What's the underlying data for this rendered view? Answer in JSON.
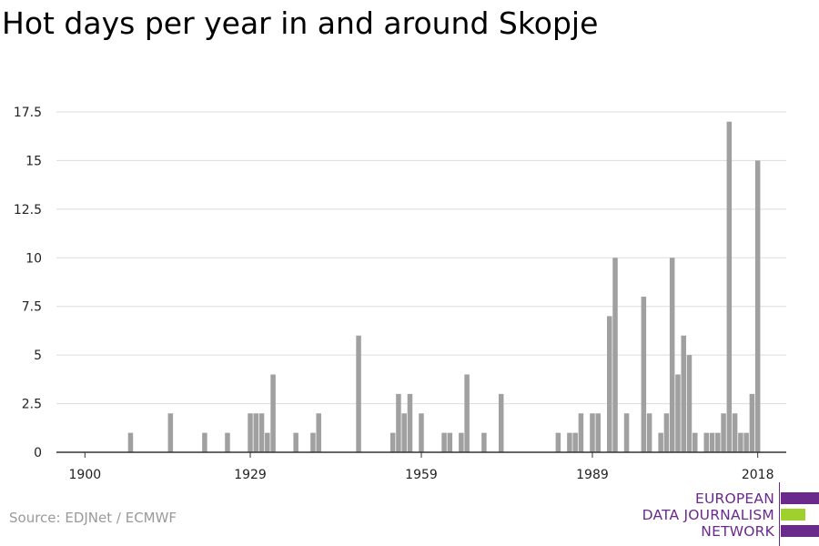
{
  "title": "Hot days per year in and around Skopje",
  "source": "Source: EDJNet / ECMWF",
  "logo": {
    "lines": [
      "EUROPEAN",
      "DATA JOURNALISM",
      "NETWORK"
    ],
    "colors": {
      "purple": "#6a2a8c",
      "green": "#9ed12b"
    }
  },
  "colors": {
    "bar": "#a0a0a0",
    "grid": "#dddddd",
    "axis": "#333333",
    "text": "#222222"
  },
  "chart_data": {
    "type": "bar",
    "title": "Hot days per year in and around Skopje",
    "xlabel": "",
    "ylabel": "",
    "xlim": [
      1895,
      2023
    ],
    "ylim": [
      0,
      17.5
    ],
    "grid": true,
    "x_ticks": [
      1900,
      1929,
      1959,
      1989,
      2018
    ],
    "y_ticks": [
      0,
      2.5,
      5,
      7.5,
      10,
      12.5,
      15,
      17.5
    ],
    "y_tick_labels": [
      "0",
      "2.5",
      "5",
      "7.5",
      "10",
      "12.5",
      "15",
      "17.5"
    ],
    "x": [
      1900,
      1901,
      1902,
      1903,
      1904,
      1905,
      1906,
      1907,
      1908,
      1909,
      1910,
      1911,
      1912,
      1913,
      1914,
      1915,
      1916,
      1917,
      1918,
      1919,
      1920,
      1921,
      1922,
      1923,
      1924,
      1925,
      1926,
      1927,
      1928,
      1929,
      1930,
      1931,
      1932,
      1933,
      1934,
      1935,
      1936,
      1937,
      1938,
      1939,
      1940,
      1941,
      1942,
      1943,
      1944,
      1945,
      1946,
      1947,
      1948,
      1949,
      1950,
      1951,
      1952,
      1953,
      1954,
      1955,
      1956,
      1957,
      1958,
      1959,
      1960,
      1961,
      1962,
      1963,
      1964,
      1965,
      1966,
      1967,
      1968,
      1969,
      1970,
      1971,
      1972,
      1973,
      1974,
      1975,
      1976,
      1977,
      1978,
      1979,
      1980,
      1981,
      1982,
      1983,
      1984,
      1985,
      1986,
      1987,
      1988,
      1989,
      1990,
      1991,
      1992,
      1993,
      1994,
      1995,
      1996,
      1997,
      1998,
      1999,
      2000,
      2001,
      2002,
      2003,
      2004,
      2005,
      2006,
      2007,
      2008,
      2009,
      2010,
      2011,
      2012,
      2013,
      2014,
      2015,
      2016,
      2017,
      2018
    ],
    "values": [
      0,
      0,
      0,
      0,
      0,
      0,
      0,
      0,
      1,
      0,
      0,
      0,
      0,
      0,
      0,
      2,
      0,
      0,
      0,
      0,
      0,
      1,
      0,
      0,
      0,
      1,
      0,
      0,
      0,
      2,
      2,
      2,
      1,
      4,
      0,
      0,
      0,
      1,
      0,
      0,
      1,
      2,
      0,
      0,
      0,
      0,
      0,
      0,
      6,
      0,
      0,
      0,
      0,
      0,
      1,
      3,
      2,
      3,
      0,
      2,
      0,
      0,
      0,
      1,
      1,
      0,
      1,
      4,
      0,
      0,
      1,
      0,
      0,
      3,
      0,
      0,
      0,
      0,
      0,
      0,
      0,
      0,
      0,
      1,
      0,
      1,
      1,
      2,
      0,
      2,
      2,
      0,
      7,
      10,
      0,
      2,
      0,
      0,
      8,
      2,
      0,
      1,
      2,
      10,
      4,
      6,
      5,
      1,
      0,
      1,
      1,
      1,
      2,
      17,
      2,
      1,
      1,
      3,
      15
    ]
  }
}
